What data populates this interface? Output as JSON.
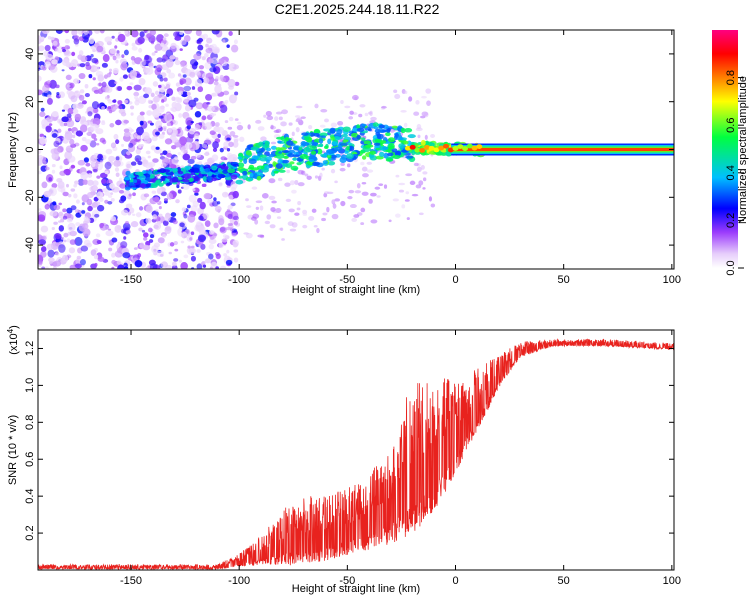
{
  "figure_title": "C2E1.2025.244.18.11.R22",
  "chart_data": [
    {
      "type": "heatmap",
      "title": "C2E1.2025.244.18.11.R22",
      "xlabel": "Height of straight line (km)",
      "ylabel": "Frequency (Hz)",
      "xlim": [
        -193,
        101
      ],
      "ylim": [
        -50,
        50
      ],
      "xticks": [
        -150,
        -100,
        -50,
        0,
        50,
        100
      ],
      "xtick_labels": [
        "-150",
        "-100",
        "-50",
        "0",
        "50",
        "100"
      ],
      "yticks": [
        -40,
        -20,
        0,
        20,
        40
      ],
      "ytick_labels": [
        "-40",
        "-20",
        "0",
        "20",
        "40"
      ],
      "colorbar": {
        "label": "Normalized spectral amplitude",
        "range": [
          0,
          1
        ],
        "ticks": [
          0,
          0.2,
          0.4,
          0.6,
          0.8
        ],
        "tick_labels": [
          "0.0",
          "0.2",
          "0.4",
          "0.6",
          "0.8"
        ],
        "colormap": [
          "#ffffff",
          "#9c3cfc",
          "#0000ff",
          "#00c0ff",
          "#00ff40",
          "#ffff00",
          "#ff7f00",
          "#ff0000",
          "#ff0080"
        ]
      },
      "features": {
        "noise_region_km": [
          -193,
          -105
        ],
        "signal_track": [
          {
            "x": -150,
            "freq": -13
          },
          {
            "x": -105,
            "freq": -9
          },
          {
            "x": -80,
            "freq": -2
          },
          {
            "x": -40,
            "freq": 4
          },
          {
            "x": -20,
            "freq": 1
          },
          {
            "x": 0,
            "freq": 0
          },
          {
            "x": 100,
            "freq": 0
          }
        ],
        "steady_line_start_km": 10
      }
    },
    {
      "type": "line",
      "xlabel": "Height of straight line (km)",
      "ylabel": "SNR (10 * v/v)",
      "scale_label": "(x10",
      "scale_exponent": "4",
      "xlim": [
        -193,
        101
      ],
      "ylim": [
        0,
        1.3
      ],
      "xticks": [
        -150,
        -100,
        -50,
        0,
        50,
        100
      ],
      "xtick_labels": [
        "-150",
        "-100",
        "-50",
        "0",
        "50",
        "100"
      ],
      "yticks": [
        0.2,
        0.4,
        0.6,
        0.8,
        1.0,
        1.2
      ],
      "ytick_labels": [
        "0.2",
        "0.4",
        "0.6",
        "0.8",
        "1.0",
        "1.2"
      ],
      "series": [
        {
          "name": "SNR",
          "color": "#e8221e",
          "envelope": [
            {
              "x": -193,
              "base": 0.01,
              "amp": 0.02
            },
            {
              "x": -110,
              "base": 0.01,
              "amp": 0.02
            },
            {
              "x": -100,
              "base": 0.03,
              "amp": 0.06
            },
            {
              "x": -90,
              "base": 0.06,
              "amp": 0.12
            },
            {
              "x": -75,
              "base": 0.1,
              "amp": 0.3
            },
            {
              "x": -60,
              "base": 0.12,
              "amp": 0.28
            },
            {
              "x": -45,
              "base": 0.17,
              "amp": 0.3
            },
            {
              "x": -30,
              "base": 0.24,
              "amp": 0.4
            },
            {
              "x": -20,
              "base": 0.36,
              "amp": 0.7
            },
            {
              "x": -10,
              "base": 0.46,
              "amp": 0.58
            },
            {
              "x": 0,
              "base": 0.62,
              "amp": 0.42
            },
            {
              "x": 10,
              "base": 0.82,
              "amp": 0.28
            },
            {
              "x": 20,
              "base": 1.02,
              "amp": 0.14
            },
            {
              "x": 30,
              "base": 1.17,
              "amp": 0.07
            },
            {
              "x": 45,
              "base": 1.22,
              "amp": 0.03
            },
            {
              "x": 70,
              "base": 1.22,
              "amp": 0.03
            },
            {
              "x": 101,
              "base": 1.2,
              "amp": 0.03
            }
          ]
        }
      ]
    }
  ]
}
